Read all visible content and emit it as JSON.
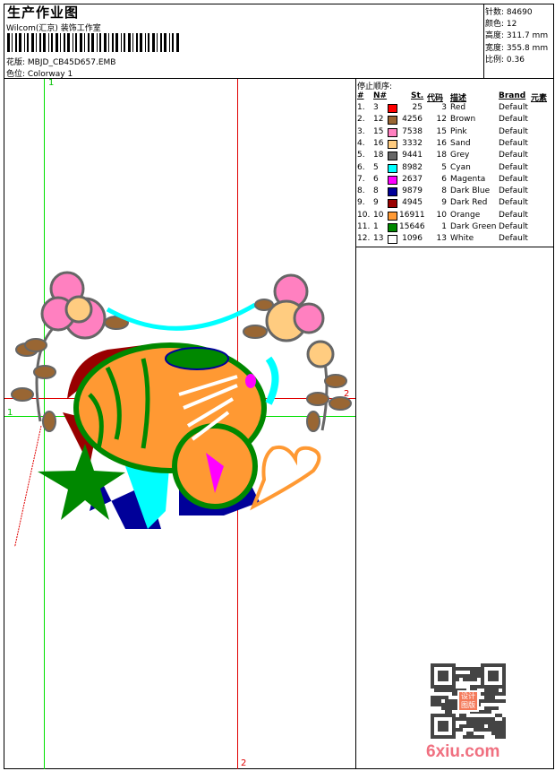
{
  "header": {
    "title": "生产作业图",
    "company": "Wilcom(汇京) 装饰工作室",
    "design_label": "花版:",
    "design_value": "MBJD_CB45D657.EMB",
    "colorway_label": "色位:",
    "colorway_value": "Colorway 1"
  },
  "stats": [
    {
      "label": "针数:",
      "value": "84690"
    },
    {
      "label": "颜色:",
      "value": "12"
    },
    {
      "label": "高度:",
      "value": "311.7 mm"
    },
    {
      "label": "宽度:",
      "value": "355.8 mm"
    },
    {
      "label": "比例:",
      "value": "0.36"
    }
  ],
  "stop_sequence": {
    "title": "停止顺序:",
    "columns": [
      "#",
      "N#",
      "St.",
      "代码",
      "描述",
      "Brand",
      "元素"
    ],
    "rows": [
      {
        "n": "1.",
        "nn": "3",
        "color": "#ff0000",
        "st": "25",
        "code": "3",
        "desc": "Red",
        "brand": "Default"
      },
      {
        "n": "2.",
        "nn": "12",
        "color": "#996633",
        "st": "4256",
        "code": "12",
        "desc": "Brown",
        "brand": "Default"
      },
      {
        "n": "3.",
        "nn": "15",
        "color": "#ff80c0",
        "st": "7538",
        "code": "15",
        "desc": "Pink",
        "brand": "Default"
      },
      {
        "n": "4.",
        "nn": "16",
        "color": "#ffcc80",
        "st": "3332",
        "code": "16",
        "desc": "Sand",
        "brand": "Default"
      },
      {
        "n": "5.",
        "nn": "18",
        "color": "#666666",
        "st": "9441",
        "code": "18",
        "desc": "Grey",
        "brand": "Default"
      },
      {
        "n": "6.",
        "nn": "5",
        "color": "#00ffff",
        "st": "8982",
        "code": "5",
        "desc": "Cyan",
        "brand": "Default"
      },
      {
        "n": "7.",
        "nn": "6",
        "color": "#ff00ff",
        "st": "2637",
        "code": "6",
        "desc": "Magenta",
        "brand": "Default"
      },
      {
        "n": "8.",
        "nn": "8",
        "color": "#000099",
        "st": "9879",
        "code": "8",
        "desc": "Dark Blue",
        "brand": "Default"
      },
      {
        "n": "9.",
        "nn": "9",
        "color": "#990000",
        "st": "4945",
        "code": "9",
        "desc": "Dark Red",
        "brand": "Default"
      },
      {
        "n": "10.",
        "nn": "10",
        "color": "#ff9933",
        "st": "16911",
        "code": "10",
        "desc": "Orange",
        "brand": "Default"
      },
      {
        "n": "11.",
        "nn": "1",
        "color": "#008800",
        "st": "15646",
        "code": "1",
        "desc": "Dark Green",
        "brand": "Default"
      },
      {
        "n": "12.",
        "nn": "13",
        "color": "#ffffff",
        "st": "1096",
        "code": "13",
        "desc": "White",
        "brand": "Default"
      }
    ]
  },
  "guides": {
    "g1_top": "1",
    "g1_left": "1",
    "g2_bottom": "2",
    "g2_right": "2"
  },
  "watermark": {
    "text": "6xiu.com",
    "seal": "设计图版"
  }
}
